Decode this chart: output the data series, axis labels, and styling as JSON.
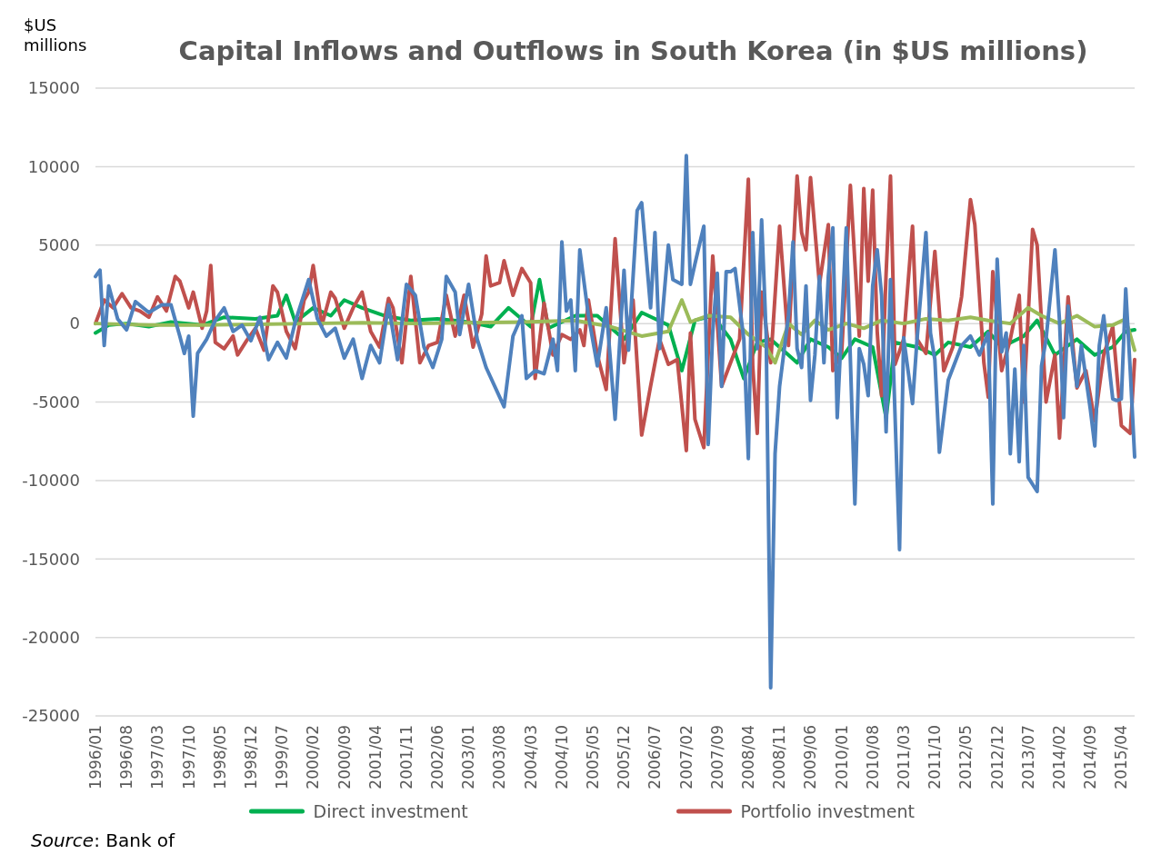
{
  "chart_data": {
    "type": "line",
    "title": "Capital Inflows and Outflows in South Korea (in $US millions)",
    "ylabel": "$US millions",
    "annotations": [
      "Source: Bank of"
    ],
    "xlim": [
      "1996-01",
      "2015-07"
    ],
    "xticks": [
      {
        "value": "1996-01",
        "label": "1996/01"
      },
      {
        "value": "1996-08",
        "label": "1996/08"
      },
      {
        "value": "1997-03",
        "label": "1997/03"
      },
      {
        "value": "1997-10",
        "label": "1997/10"
      },
      {
        "value": "1998-05",
        "label": "1998/05"
      },
      {
        "value": "1998-12",
        "label": "1998/12"
      },
      {
        "value": "1999-07",
        "label": "1999/07"
      },
      {
        "value": "2000-02",
        "label": "2000/02"
      },
      {
        "value": "2000-09",
        "label": "2000/09"
      },
      {
        "value": "2001-04",
        "label": "2001/04"
      },
      {
        "value": "2001-11",
        "label": "2001/11"
      },
      {
        "value": "2002-06",
        "label": "2002/06"
      },
      {
        "value": "2003-01",
        "label": "2003/01"
      },
      {
        "value": "2003-08",
        "label": "2003/08"
      },
      {
        "value": "2004-03",
        "label": "2004/03"
      },
      {
        "value": "2004-10",
        "label": "2004/10"
      },
      {
        "value": "2005-05",
        "label": "2005/05"
      },
      {
        "value": "2005-12",
        "label": "2005/12"
      },
      {
        "value": "2006-07",
        "label": "2006/07"
      },
      {
        "value": "2007-02",
        "label": "2007/02"
      },
      {
        "value": "2007-09",
        "label": "2007/09"
      },
      {
        "value": "2008-04",
        "label": "2008/04"
      },
      {
        "value": "2008-11",
        "label": "2008/11"
      },
      {
        "value": "2009-06",
        "label": "2009/06"
      },
      {
        "value": "2010-01",
        "label": "2010/01"
      },
      {
        "value": "2010-08",
        "label": "2010/08"
      },
      {
        "value": "2011-03",
        "label": "2011/03"
      },
      {
        "value": "2011-10",
        "label": "2011/10"
      },
      {
        "value": "2012-05",
        "label": "2012/05"
      },
      {
        "value": "2012-12",
        "label": "2012/12"
      },
      {
        "value": "2013-07",
        "label": "2013/07"
      },
      {
        "value": "2014-02",
        "label": "2014/02"
      },
      {
        "value": "2014-09",
        "label": "2014/09"
      },
      {
        "value": "2015-04",
        "label": "2015/04"
      }
    ],
    "ylim": [
      -25000,
      15000
    ],
    "yticks": [
      -25000,
      -20000,
      -15000,
      -10000,
      -5000,
      0,
      5000,
      10000,
      15000
    ],
    "grid": "y",
    "legend": "bottom",
    "line_style": "solid",
    "series": [
      {
        "name": "Direct investment",
        "color": "#00b050",
        "x": [
          "1996-01",
          "1996-04",
          "1996-08",
          "1997-01",
          "1997-06",
          "1998-01",
          "1998-06",
          "1999-01",
          "1999-06",
          "1999-08",
          "1999-10",
          "2000-02",
          "2000-06",
          "2000-09",
          "2001-01",
          "2001-06",
          "2001-12",
          "2002-06",
          "2003-01",
          "2003-06",
          "2003-10",
          "2004-03",
          "2004-05",
          "2004-07",
          "2005-01",
          "2005-06",
          "2005-12",
          "2006-04",
          "2006-10",
          "2007-01",
          "2007-04",
          "2007-08",
          "2007-12",
          "2008-03",
          "2008-06",
          "2008-09",
          "2009-01",
          "2009-03",
          "2009-06",
          "2009-10",
          "2010-01",
          "2010-04",
          "2010-08",
          "2010-11",
          "2011-01",
          "2011-06",
          "2011-10",
          "2012-01",
          "2012-06",
          "2012-10",
          "2013-01",
          "2013-06",
          "2013-09",
          "2014-01",
          "2014-06",
          "2014-10",
          "2015-02",
          "2015-05",
          "2015-07"
        ],
        "values": [
          -600,
          -100,
          0,
          -200,
          100,
          -100,
          400,
          300,
          500,
          1800,
          100,
          1000,
          500,
          1500,
          1000,
          500,
          200,
          300,
          100,
          -200,
          1000,
          -200,
          2800,
          -300,
          500,
          500,
          -1000,
          700,
          -100,
          -3000,
          200,
          500,
          -1000,
          -3500,
          -1200,
          -1000,
          -2000,
          -2500,
          -1000,
          -1500,
          -2200,
          -1000,
          -1500,
          -6000,
          -1200,
          -1500,
          -2000,
          -1200,
          -1500,
          -500,
          -1500,
          -800,
          200,
          -2000,
          -1000,
          -2000,
          -1500,
          -500,
          -400
        ]
      },
      {
        "name": "Portfolio investment",
        "color": "#c0504d",
        "x": [
          "1996-01",
          "1996-03",
          "1996-05",
          "1996-07",
          "1996-09",
          "1996-11",
          "1997-01",
          "1997-03",
          "1997-05",
          "1997-07",
          "1997-08",
          "1997-10",
          "1997-11",
          "1998-01",
          "1998-02",
          "1998-03",
          "1998-04",
          "1998-06",
          "1998-08",
          "1998-09",
          "1998-11",
          "1999-01",
          "1999-03",
          "1999-05",
          "1999-06",
          "1999-08",
          "1999-10",
          "1999-12",
          "2000-01",
          "2000-02",
          "2000-04",
          "2000-06",
          "2000-07",
          "2000-09",
          "2000-11",
          "2001-01",
          "2001-03",
          "2001-05",
          "2001-07",
          "2001-08",
          "2001-10",
          "2001-12",
          "2002-02",
          "2002-04",
          "2002-06",
          "2002-08",
          "2002-10",
          "2002-12",
          "2003-02",
          "2003-04",
          "2003-05",
          "2003-06",
          "2003-08",
          "2003-09",
          "2003-11",
          "2004-01",
          "2004-03",
          "2004-04",
          "2004-06",
          "2004-08",
          "2004-10",
          "2004-12",
          "2005-02",
          "2005-03",
          "2005-04",
          "2005-06",
          "2005-08",
          "2005-10",
          "2005-12",
          "2006-02",
          "2006-04",
          "2006-06",
          "2006-08",
          "2006-10",
          "2006-12",
          "2007-02",
          "2007-03",
          "2007-04",
          "2007-06",
          "2007-08",
          "2007-10",
          "2007-12",
          "2008-02",
          "2008-04",
          "2008-05",
          "2008-06",
          "2008-07",
          "2008-09",
          "2008-11",
          "2009-01",
          "2009-03",
          "2009-04",
          "2009-05",
          "2009-06",
          "2009-08",
          "2009-10",
          "2009-11",
          "2010-01",
          "2010-03",
          "2010-05",
          "2010-06",
          "2010-07",
          "2010-08",
          "2010-09",
          "2010-10",
          "2010-11",
          "2010-12",
          "2011-01",
          "2011-03",
          "2011-05",
          "2011-06",
          "2011-08",
          "2011-10",
          "2011-12",
          "2012-02",
          "2012-04",
          "2012-06",
          "2012-07",
          "2012-09",
          "2012-10",
          "2012-11",
          "2013-01",
          "2013-03",
          "2013-05",
          "2013-06",
          "2013-08",
          "2013-09",
          "2013-11",
          "2014-01",
          "2014-02",
          "2014-04",
          "2014-06",
          "2014-08",
          "2014-10",
          "2014-12",
          "2015-02",
          "2015-04",
          "2015-06",
          "2015-07"
        ],
        "values": [
          0,
          1500,
          1000,
          1900,
          1000,
          800,
          400,
          1700,
          800,
          3000,
          2700,
          1000,
          2000,
          -300,
          800,
          3700,
          -1200,
          -1600,
          -800,
          -2000,
          -1100,
          -300,
          -1700,
          2400,
          2000,
          -500,
          -1600,
          1500,
          2000,
          3700,
          -100,
          2000,
          1600,
          -300,
          1000,
          2000,
          -500,
          -1500,
          1600,
          1000,
          -2500,
          3000,
          -2500,
          -1400,
          -1200,
          1800,
          -800,
          1800,
          -1500,
          600,
          4300,
          2400,
          2600,
          4000,
          1800,
          3500,
          2600,
          -3500,
          1300,
          -2000,
          -700,
          -1000,
          -400,
          -1400,
          1500,
          -2000,
          -4200,
          5400,
          -2500,
          1500,
          -7100,
          -4000,
          -1000,
          -2600,
          -2300,
          -8100,
          -600,
          -6100,
          -7900,
          4300,
          -4000,
          -2500,
          -1000,
          9200,
          -2700,
          -7000,
          2000,
          -2500,
          6200,
          -1400,
          9400,
          5800,
          4700,
          9300,
          2500,
          6300,
          -3000,
          -1800,
          8800,
          -800,
          8600,
          2700,
          8500,
          -500,
          -4600,
          3200,
          9400,
          -2600,
          -1000,
          6200,
          -1000,
          -1900,
          4600,
          -3000,
          -1500,
          1700,
          7900,
          6300,
          -2500,
          -4700,
          3300,
          -3000,
          -1000,
          1800,
          -5000,
          6000,
          5000,
          -5000,
          -2000,
          -7300,
          1700,
          -4100,
          -3000,
          -6200,
          -2000,
          -200,
          -6500,
          -7000,
          -2300
        ]
      },
      {
        "color": "#9bbb59",
        "x": [
          "1996-01",
          "1997-01",
          "1998-01",
          "1999-01",
          "2000-01",
          "2001-01",
          "2002-01",
          "2003-01",
          "2004-01",
          "2005-01",
          "2005-09",
          "2006-04",
          "2006-10",
          "2007-01",
          "2007-03",
          "2007-07",
          "2007-12",
          "2008-04",
          "2008-08",
          "2008-10",
          "2009-01",
          "2009-04",
          "2009-07",
          "2009-10",
          "2010-02",
          "2010-06",
          "2010-10",
          "2011-03",
          "2011-08",
          "2012-01",
          "2012-06",
          "2012-10",
          "2013-03",
          "2013-07",
          "2013-10",
          "2014-02",
          "2014-06",
          "2014-10",
          "2015-02",
          "2015-05",
          "2015-07"
        ],
        "values": [
          0,
          -100,
          -100,
          -50,
          0,
          50,
          0,
          50,
          100,
          200,
          -200,
          -800,
          -500,
          1500,
          100,
          500,
          400,
          -700,
          -1500,
          -2500,
          0,
          -700,
          200,
          -400,
          0,
          -300,
          200,
          0,
          300,
          200,
          400,
          200,
          0,
          1000,
          500,
          0,
          500,
          -200,
          -100,
          300,
          -1700
        ]
      },
      {
        "color": "#4f81bd",
        "x": [
          "1996-01",
          "1996-02",
          "1996-03",
          "1996-04",
          "1996-06",
          "1996-08",
          "1996-10",
          "1997-01",
          "1997-04",
          "1997-06",
          "1997-08",
          "1997-09",
          "1997-10",
          "1997-11",
          "1997-12",
          "1998-02",
          "1998-04",
          "1998-06",
          "1998-08",
          "1998-10",
          "1998-12",
          "1999-02",
          "1999-04",
          "1999-06",
          "1999-08",
          "1999-10",
          "2000-01",
          "2000-03",
          "2000-05",
          "2000-07",
          "2000-09",
          "2000-11",
          "2001-01",
          "2001-03",
          "2001-05",
          "2001-07",
          "2001-09",
          "2001-11",
          "2002-01",
          "2002-03",
          "2002-05",
          "2002-07",
          "2002-08",
          "2002-10",
          "2002-11",
          "2003-01",
          "2003-03",
          "2003-05",
          "2003-09",
          "2003-11",
          "2004-01",
          "2004-02",
          "2004-04",
          "2004-06",
          "2004-08",
          "2004-09",
          "2004-10",
          "2004-11",
          "2004-12",
          "2005-01",
          "2005-02",
          "2005-04",
          "2005-06",
          "2005-08",
          "2005-10",
          "2005-12",
          "2006-01",
          "2006-03",
          "2006-04",
          "2006-06",
          "2006-07",
          "2006-08",
          "2006-10",
          "2006-11",
          "2007-01",
          "2007-02",
          "2007-03",
          "2007-04",
          "2007-05",
          "2007-06",
          "2007-07",
          "2007-08",
          "2007-09",
          "2007-10",
          "2007-11",
          "2007-12",
          "2008-01",
          "2008-03",
          "2008-04",
          "2008-05",
          "2008-06",
          "2008-07",
          "2008-08",
          "2008-09",
          "2008-10",
          "2008-11",
          "2009-01",
          "2009-02",
          "2009-03",
          "2009-04",
          "2009-05",
          "2009-06",
          "2009-07",
          "2009-08",
          "2009-09",
          "2009-10",
          "2009-11",
          "2009-12",
          "2010-02",
          "2010-04",
          "2010-05",
          "2010-06",
          "2010-07",
          "2010-08",
          "2010-09",
          "2010-10",
          "2010-11",
          "2010-12",
          "2011-02",
          "2011-03",
          "2011-05",
          "2011-06",
          "2011-08",
          "2011-09",
          "2011-10",
          "2011-11",
          "2012-01",
          "2012-04",
          "2012-06",
          "2012-08",
          "2012-10",
          "2012-11",
          "2012-12",
          "2013-01",
          "2013-02",
          "2013-03",
          "2013-04",
          "2013-05",
          "2013-06",
          "2013-07",
          "2013-09",
          "2013-10",
          "2013-11",
          "2014-01",
          "2014-02",
          "2014-03",
          "2014-04",
          "2014-05",
          "2014-06",
          "2014-07",
          "2014-09",
          "2014-10",
          "2014-11",
          "2014-12",
          "2015-01",
          "2015-02",
          "2015-03",
          "2015-04",
          "2015-05",
          "2015-06",
          "2015-07"
        ],
        "values": [
          3000,
          3400,
          -1400,
          2400,
          300,
          -400,
          1400,
          700,
          1200,
          1200,
          -800,
          -1900,
          -800,
          -5900,
          -1900,
          -1000,
          200,
          1000,
          -500,
          -100,
          -1100,
          400,
          -2300,
          -1200,
          -2200,
          100,
          2800,
          300,
          -800,
          -300,
          -2200,
          -1000,
          -3500,
          -1400,
          -2500,
          1200,
          -2300,
          2500,
          1800,
          -1500,
          -2800,
          -1000,
          3000,
          2000,
          -700,
          2500,
          -1000,
          -2800,
          -5300,
          -800,
          500,
          -3500,
          -3000,
          -3200,
          -1000,
          -3000,
          5200,
          800,
          1500,
          -3000,
          4700,
          500,
          -2700,
          1000,
          -6100,
          3400,
          -1700,
          7200,
          7700,
          1000,
          5800,
          -1600,
          5000,
          2800,
          2500,
          10700,
          2500,
          3800,
          5000,
          6200,
          -7700,
          -500,
          3200,
          -4000,
          3300,
          3300,
          3500,
          -1000,
          -8600,
          5800,
          -1600,
          6600,
          -700,
          -23200,
          -8300,
          -4000,
          500,
          5200,
          -1600,
          -2800,
          2400,
          -4900,
          -2000,
          3000,
          -2500,
          3000,
          6100,
          -6000,
          6100,
          -11500,
          -1600,
          -2600,
          -4600,
          2400,
          4700,
          1800,
          -6900,
          2800,
          -14400,
          -900,
          -5100,
          -1000,
          5800,
          -600,
          -2300,
          -8200,
          -3600,
          -1400,
          -800,
          -2000,
          -600,
          -11500,
          4100,
          -1800,
          -600,
          -8300,
          -2900,
          -8800,
          -1400,
          -9800,
          -10700,
          -2700,
          -1000,
          4700,
          200,
          -6000,
          1100,
          -1700,
          -4000,
          -1400,
          -5500,
          -7800,
          -1400,
          500,
          -2200,
          -4800,
          -4900,
          -4800,
          2200,
          -3000,
          -8500
        ]
      }
    ]
  }
}
